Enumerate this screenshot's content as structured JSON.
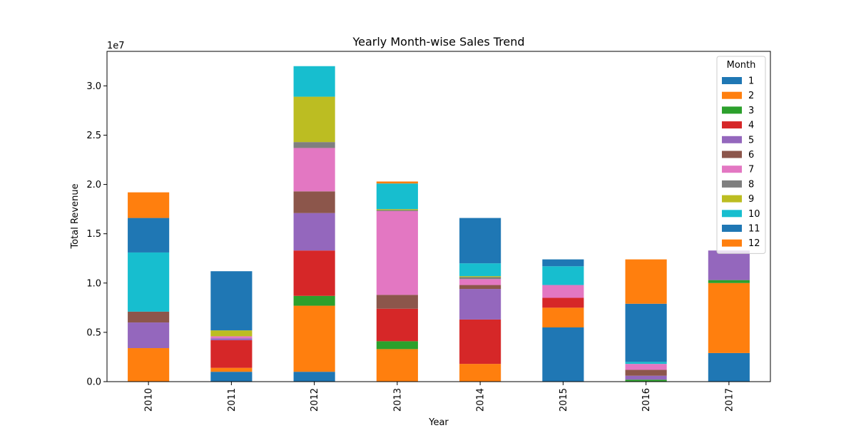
{
  "chart_data": {
    "type": "bar",
    "stacked": true,
    "title": "Yearly Month-wise Sales Trend",
    "xlabel": "Year",
    "ylabel": "Total Revenue",
    "y_offset_label": "1e7",
    "ylim": [
      0,
      33500000
    ],
    "yticks": [
      0,
      5000000,
      10000000,
      15000000,
      20000000,
      25000000,
      30000000
    ],
    "ytick_labels": [
      "0.0",
      "0.5",
      "1.0",
      "1.5",
      "2.0",
      "2.5",
      "3.0"
    ],
    "categories": [
      "2010",
      "2011",
      "2012",
      "2013",
      "2014",
      "2015",
      "2016",
      "2017"
    ],
    "legend": {
      "title": "Month",
      "placement": "top-right"
    },
    "series": [
      {
        "name": "1",
        "color": "#1f77b4",
        "values": [
          0,
          1000000,
          1000000,
          0,
          0,
          5500000,
          0,
          2900000
        ]
      },
      {
        "name": "2",
        "color": "#ff7f0e",
        "values": [
          3400000,
          400000,
          6700000,
          3300000,
          1800000,
          2000000,
          0,
          7100000
        ]
      },
      {
        "name": "3",
        "color": "#2ca02c",
        "values": [
          0,
          0,
          1000000,
          800000,
          0,
          0,
          200000,
          300000
        ]
      },
      {
        "name": "4",
        "color": "#d62728",
        "values": [
          0,
          2800000,
          4600000,
          3300000,
          4500000,
          1000000,
          0,
          0
        ]
      },
      {
        "name": "5",
        "color": "#9467bd",
        "values": [
          2600000,
          200000,
          3800000,
          0,
          3100000,
          0,
          400000,
          3000000
        ]
      },
      {
        "name": "6",
        "color": "#8c564b",
        "values": [
          1100000,
          0,
          2200000,
          1400000,
          400000,
          0,
          600000,
          0
        ]
      },
      {
        "name": "7",
        "color": "#e377c2",
        "values": [
          0,
          200000,
          4400000,
          8500000,
          600000,
          1300000,
          600000,
          0
        ]
      },
      {
        "name": "8",
        "color": "#7f7f7f",
        "values": [
          0,
          0,
          600000,
          100000,
          200000,
          0,
          0,
          0
        ]
      },
      {
        "name": "9",
        "color": "#bcbd22",
        "values": [
          0,
          600000,
          4600000,
          100000,
          100000,
          0,
          0,
          0
        ]
      },
      {
        "name": "10",
        "color": "#17becf",
        "values": [
          6000000,
          0,
          3100000,
          2600000,
          1300000,
          1900000,
          200000,
          0
        ]
      },
      {
        "name": "11",
        "color": "#1f77b4",
        "values": [
          3500000,
          6000000,
          0,
          0,
          4600000,
          700000,
          5900000,
          0
        ]
      },
      {
        "name": "12",
        "color": "#ff7f0e",
        "values": [
          2600000,
          0,
          0,
          200000,
          0,
          0,
          4500000,
          0
        ]
      }
    ]
  }
}
